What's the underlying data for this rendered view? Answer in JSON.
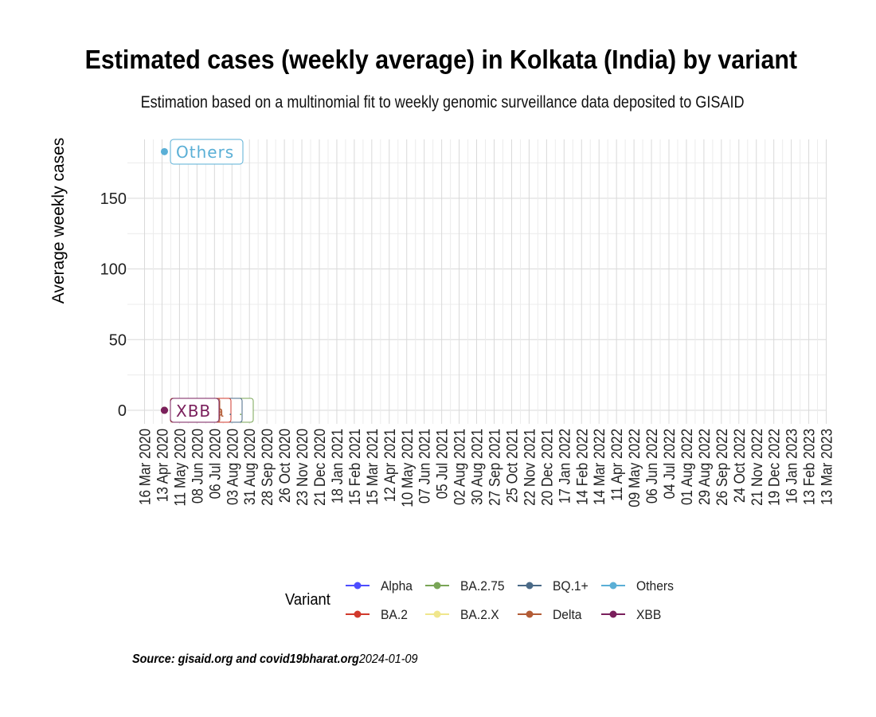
{
  "chart_data": {
    "type": "line",
    "title": "Estimated cases (weekly average) in Kolkata (India) by variant",
    "subtitle": "Estimation based on a multinomial fit to weekly genomic surveillance data deposited to GISAID",
    "ylabel": "Average weekly cases",
    "xlabel": "",
    "ylim": [
      -10,
      193
    ],
    "y_ticks": [
      0,
      50,
      100,
      150
    ],
    "x_ticks": [
      "16 Mar 2020",
      "13 Apr 2020",
      "11 May 2020",
      "08 Jun 2020",
      "06 Jul 2020",
      "03 Aug 2020",
      "31 Aug 2020",
      "28 Sep 2020",
      "26 Oct 2020",
      "23 Nov 2020",
      "21 Dec 2020",
      "18 Jan 2021",
      "15 Feb 2021",
      "15 Mar 2021",
      "12 Apr 2021",
      "10 May 2021",
      "07 Jun 2021",
      "05 Jul 2021",
      "02 Aug 2021",
      "30 Aug 2021",
      "27 Sep 2021",
      "25 Oct 2021",
      "22 Nov 2021",
      "20 Dec 2021",
      "17 Jan 2022",
      "14 Feb 2022",
      "14 Mar 2022",
      "11 Apr 2022",
      "09 May 2022",
      "06 Jun 2022",
      "04 Jul 2022",
      "01 Aug 2022",
      "29 Aug 2022",
      "26 Sep 2022",
      "24 Oct 2022",
      "21 Nov 2022",
      "19 Dec 2022",
      "16 Jan 2023",
      "13 Feb 2023",
      "13 Mar 2023"
    ],
    "grid": true,
    "legend_title": "Variant",
    "legend_position": "bottom",
    "series": [
      {
        "name": "Alpha",
        "color": "#4d4dff",
        "x": [
          "13 Apr 2020"
        ],
        "y": [
          0
        ]
      },
      {
        "name": "BA.2",
        "color": "#d1392c",
        "x": [
          "13 Apr 2020"
        ],
        "y": [
          0
        ]
      },
      {
        "name": "BA.2.75",
        "color": "#79a556",
        "x": [
          "13 Apr 2020"
        ],
        "y": [
          0
        ]
      },
      {
        "name": "BA.2.X",
        "color": "#f0e68c",
        "x": [
          "13 Apr 2020"
        ],
        "y": [
          0
        ]
      },
      {
        "name": "BQ.1+",
        "color": "#4a6a87",
        "x": [
          "13 Apr 2020"
        ],
        "y": [
          0
        ]
      },
      {
        "name": "Delta",
        "color": "#b35c36",
        "x": [
          "13 Apr 2020"
        ],
        "y": [
          0
        ]
      },
      {
        "name": "Others",
        "color": "#5aafd6",
        "x": [
          "13 Apr 2020"
        ],
        "y": [
          183
        ]
      },
      {
        "name": "XBB",
        "color": "#7a1f5c",
        "x": [
          "13 Apr 2020"
        ],
        "y": [
          0
        ]
      }
    ],
    "end_labels": [
      {
        "series": "Others",
        "text": "Others"
      },
      {
        "series": "XBB",
        "text": "XBB"
      },
      {
        "series": "Delta",
        "text": "a"
      }
    ]
  },
  "caption": {
    "source": "Source: gisaid.org and covid19bharat.org",
    "date": "2024-01-09"
  }
}
